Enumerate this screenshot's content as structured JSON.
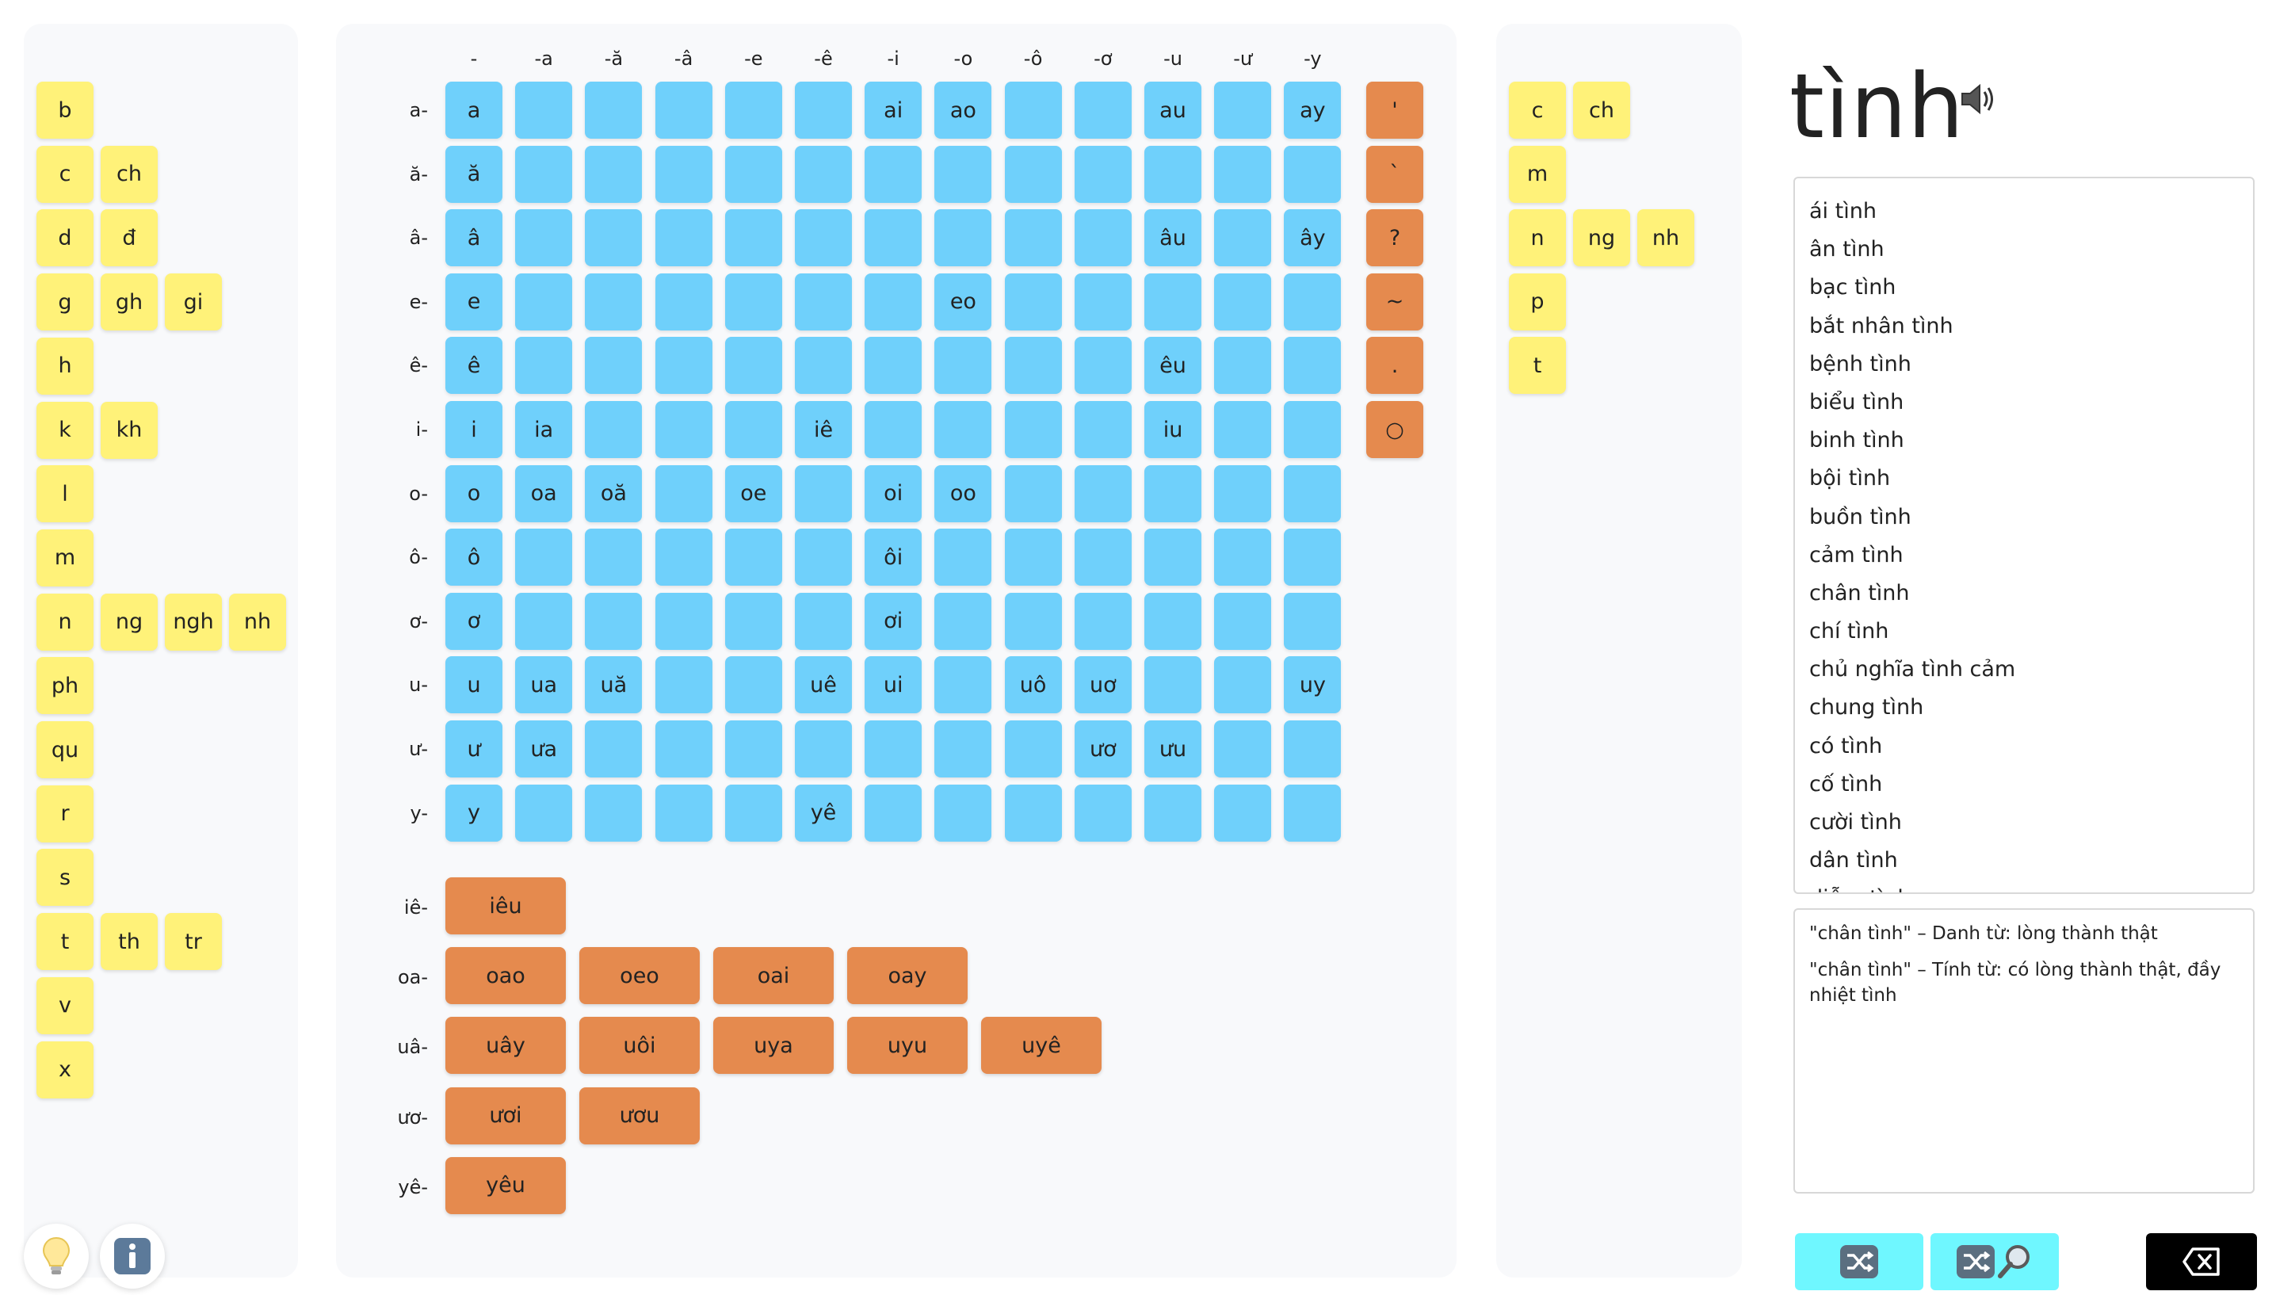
{
  "initials": {
    "rows": [
      [
        "b"
      ],
      [
        "c",
        "ch"
      ],
      [
        "d",
        "đ"
      ],
      [
        "g",
        "gh",
        "gi"
      ],
      [
        "h"
      ],
      [
        "k",
        "kh"
      ],
      [
        "l"
      ],
      [
        "m"
      ],
      [
        "n",
        "ng",
        "ngh",
        "nh"
      ],
      [
        "ph"
      ],
      [
        "qu"
      ],
      [
        "r"
      ],
      [
        "s"
      ],
      [
        "t",
        "th",
        "tr"
      ],
      [
        "v"
      ],
      [
        "x"
      ]
    ]
  },
  "vowel_grid": {
    "col_headers": [
      "-",
      "-a",
      "-ă",
      "-â",
      "-e",
      "-ê",
      "-i",
      "-o",
      "-ô",
      "-ơ",
      "-u",
      "-ư",
      "-y"
    ],
    "row_headers": [
      "a-",
      "ă-",
      "â-",
      "e-",
      "ê-",
      "i-",
      "o-",
      "ô-",
      "ơ-",
      "u-",
      "ư-",
      "y-"
    ],
    "cells": [
      [
        "a",
        "",
        "",
        "",
        "",
        "",
        "ai",
        "ao",
        "",
        "",
        "au",
        "",
        "ay"
      ],
      [
        "ă",
        "",
        "",
        "",
        "",
        "",
        "",
        "",
        "",
        "",
        "",
        "",
        ""
      ],
      [
        "â",
        "",
        "",
        "",
        "",
        "",
        "",
        "",
        "",
        "",
        "âu",
        "",
        "ây"
      ],
      [
        "e",
        "",
        "",
        "",
        "",
        "",
        "",
        "eo",
        "",
        "",
        "",
        "",
        ""
      ],
      [
        "ê",
        "",
        "",
        "",
        "",
        "",
        "",
        "",
        "",
        "",
        "êu",
        "",
        ""
      ],
      [
        "i",
        "ia",
        "",
        "",
        "",
        "iê",
        "",
        "",
        "",
        "",
        "iu",
        "",
        ""
      ],
      [
        "o",
        "oa",
        "oă",
        "",
        "oe",
        "",
        "oi",
        "oo",
        "",
        "",
        "",
        "",
        ""
      ],
      [
        "ô",
        "",
        "",
        "",
        "",
        "",
        "ôi",
        "",
        "",
        "",
        "",
        "",
        ""
      ],
      [
        "ơ",
        "",
        "",
        "",
        "",
        "",
        "ơi",
        "",
        "",
        "",
        "",
        "",
        ""
      ],
      [
        "u",
        "ua",
        "uă",
        "",
        "",
        "uê",
        "ui",
        "",
        "uô",
        "uơ",
        "",
        "",
        "uy"
      ],
      [
        "ư",
        "ưa",
        "",
        "",
        "",
        "",
        "",
        "",
        "",
        "ươ",
        "ưu",
        "",
        ""
      ],
      [
        "y",
        "",
        "",
        "",
        "",
        "yê",
        "",
        "",
        "",
        "",
        "",
        "",
        ""
      ]
    ]
  },
  "tones": [
    "'",
    "`",
    "?",
    "~",
    ".",
    "○"
  ],
  "triphthongs": [
    {
      "head": "iê-",
      "items": [
        "iêu"
      ]
    },
    {
      "head": "oa-",
      "items": [
        "oao",
        "oeo",
        "oai",
        "oay"
      ]
    },
    {
      "head": "uâ-",
      "items": [
        "uây",
        "uôi",
        "uya",
        "uyu",
        "uyê"
      ]
    },
    {
      "head": "ươ-",
      "items": [
        "ươi",
        "ươu"
      ]
    },
    {
      "head": "yê-",
      "items": [
        "yêu"
      ]
    }
  ],
  "finals": {
    "rows": [
      [
        "c",
        "ch"
      ],
      [
        "m"
      ],
      [
        "n",
        "ng",
        "nh"
      ],
      [
        "p"
      ],
      [
        "t"
      ]
    ]
  },
  "word": {
    "title": "tình",
    "speaker_icon": "speaker-icon"
  },
  "word_list": [
    "ái tình",
    "ân tình",
    "bạc tình",
    "bắt nhân tình",
    "bệnh tình",
    "biểu tình",
    "binh tình",
    "bội tình",
    "buồn tình",
    "cảm tình",
    "chân tình",
    "chí tình",
    "chủ nghĩa tình cảm",
    "chung tình",
    "có tình",
    "cố tình",
    "cười tình",
    "dân tình",
    "diễm tình"
  ],
  "definitions": [
    "\"chân tình\"  –  Danh từ: lòng thành thật",
    "\"chân tình\"  –  Tính từ: có lòng thành thật, đầy nhiệt tình"
  ],
  "buttons": {
    "shuffle_icon": "shuffle-icon",
    "shuffle_search_icon": "shuffle-search-icon",
    "backspace_icon": "backspace-icon",
    "bulb_icon": "lightbulb-icon",
    "info_icon": "info-icon"
  },
  "colors": {
    "initial": "#fff279",
    "vowel": "#6fd0fb",
    "tone": "#e58a4e",
    "action": "#6ff7ff"
  }
}
